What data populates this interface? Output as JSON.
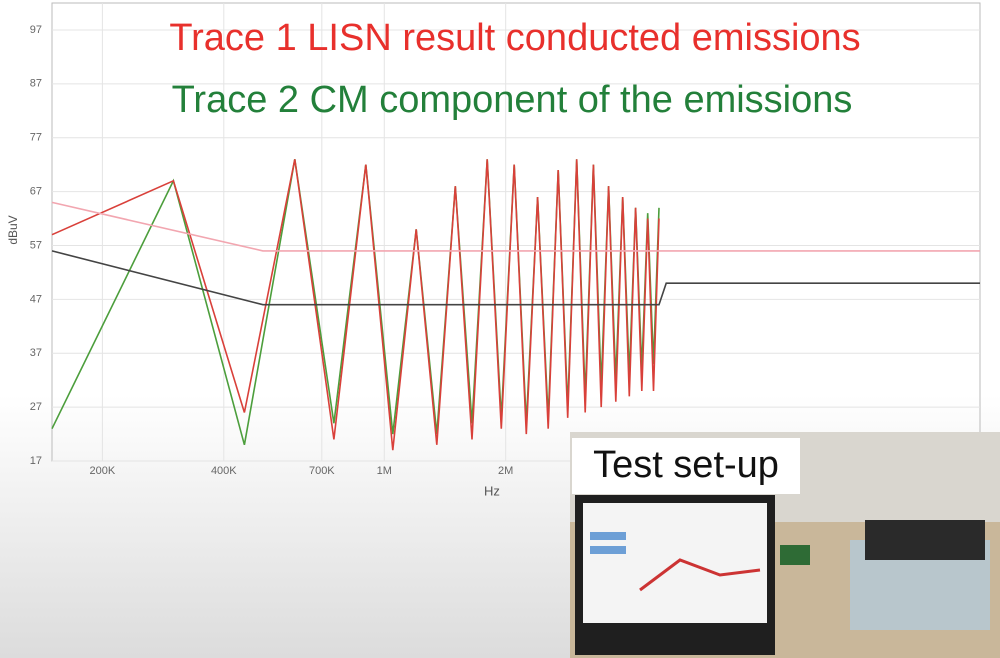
{
  "chart_data": {
    "type": "line",
    "title": "Trace 1 LISN result conducted emissions",
    "subtitle": "Trace 2 CM component of the emissions",
    "y_label": "dBuV",
    "x_label": "Hz",
    "log_x": true,
    "grid": true,
    "xlim": [
      150000,
      30000000
    ],
    "ylim": [
      17,
      102
    ],
    "xticks": [
      {
        "value": 200000,
        "label": "200K"
      },
      {
        "value": 400000,
        "label": "400K"
      },
      {
        "value": 700000,
        "label": "700K"
      },
      {
        "value": 1000000,
        "label": "1M"
      },
      {
        "value": 2000000,
        "label": "2M"
      }
    ],
    "yticks": [
      17,
      27,
      37,
      47,
      57,
      67,
      77,
      87,
      97
    ],
    "series": [
      {
        "color": "#4c9e3c",
        "x": [
          150000,
          300000,
          450000,
          600000,
          750000,
          900000,
          1050000,
          1200000,
          1350000,
          1500000,
          1650000,
          1800000,
          1950000,
          2100000,
          2250000,
          2400000,
          2550000,
          2700000,
          2850000,
          3000000,
          3150000,
          3300000,
          3450000,
          3600000,
          3750000,
          3900000,
          4050000,
          4200000,
          4350000,
          4500000,
          4650000,
          4800000
        ],
        "values": [
          23,
          69,
          20,
          73,
          24,
          72,
          22,
          60,
          22,
          68,
          24,
          73,
          25,
          72,
          24,
          66,
          25,
          71,
          27,
          73,
          29,
          72,
          31,
          68,
          32,
          66,
          33,
          64,
          34,
          63,
          35,
          64
        ]
      },
      {
        "color": "#d9403a",
        "x": [
          150000,
          300000,
          450000,
          600000,
          750000,
          900000,
          1050000,
          1200000,
          1350000,
          1500000,
          1650000,
          1800000,
          1950000,
          2100000,
          2250000,
          2400000,
          2550000,
          2700000,
          2850000,
          3000000,
          3150000,
          3300000,
          3450000,
          3600000,
          3750000,
          3900000,
          4050000,
          4200000,
          4350000,
          4500000,
          4650000,
          4800000
        ],
        "values": [
          59,
          69,
          26,
          73,
          21,
          72,
          19,
          60,
          20,
          68,
          21,
          73,
          23,
          72,
          22,
          66,
          23,
          71,
          25,
          73,
          26,
          72,
          27,
          68,
          28,
          66,
          29,
          64,
          30,
          62,
          30,
          62
        ]
      },
      {
        "color": "#444444",
        "x": [
          150000,
          500000,
          4800000,
          5000000,
          30000000
        ],
        "values": [
          56,
          46,
          46,
          50,
          50
        ]
      },
      {
        "color": "#f2a6b0",
        "x": [
          150000,
          500000,
          30000000
        ],
        "values": [
          65,
          56,
          56
        ]
      }
    ]
  },
  "inset": {
    "caption": "Test set-up"
  }
}
